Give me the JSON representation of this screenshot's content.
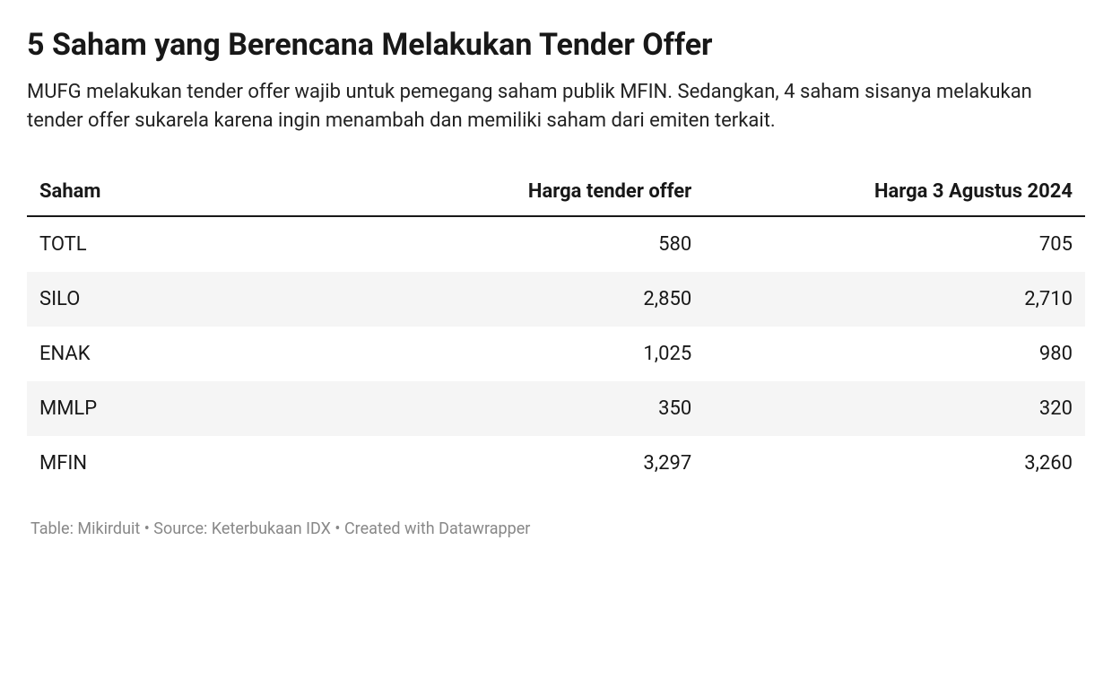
{
  "title": "5 Saham yang Berencana Melakukan Tender Offer",
  "subtitle": "MUFG melakukan tender offer wajib untuk pemegang saham publik MFIN. Sedangkan, 4 saham sisanya melakukan tender offer sukarela karena ingin menambah dan memiliki saham dari emiten terkait.",
  "table": {
    "type": "table",
    "columns": [
      {
        "label": "Saham",
        "align": "left",
        "width_pct": 36
      },
      {
        "label": "Harga tender offer",
        "align": "right",
        "width_pct": 28
      },
      {
        "label": "Harga 3 Agustus 2024",
        "align": "right",
        "width_pct": 36
      }
    ],
    "rows": [
      {
        "saham": "TOTL",
        "tender": "580",
        "harga": "705"
      },
      {
        "saham": "SILO",
        "tender": "2,850",
        "harga": "2,710"
      },
      {
        "saham": "ENAK",
        "tender": "1,025",
        "harga": "980"
      },
      {
        "saham": "MMLP",
        "tender": "350",
        "harga": "320"
      },
      {
        "saham": "MFIN",
        "tender": "3,297",
        "harga": "3,260"
      }
    ],
    "header_border_color": "#181818",
    "header_fontsize": 22,
    "header_fontweight": 700,
    "cell_fontsize": 22,
    "row_stripe_even_bg": "#f5f5f5",
    "row_stripe_odd_bg": "#ffffff",
    "text_color": "#181818"
  },
  "footer": "Table: Mikirduit • Source: Keterbukaan IDX • Created with Datawrapper",
  "footer_color": "#888888",
  "background_color": "#ffffff"
}
